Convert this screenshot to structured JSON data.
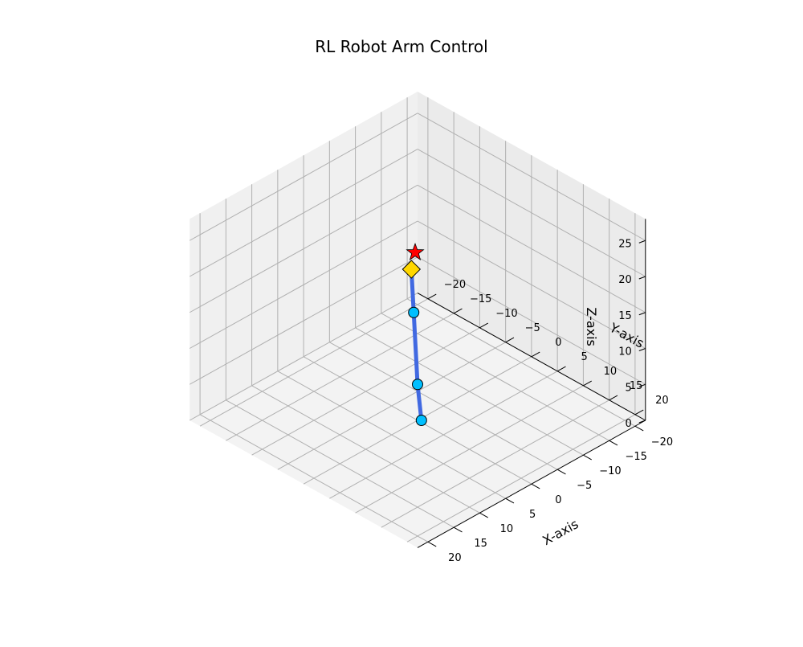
{
  "chart_data": {
    "type": "line3d",
    "title": "RL Robot Arm Control",
    "xlabel": "X-axis",
    "ylabel": "Y-axis",
    "zlabel": "Z-axis",
    "xlim": [
      -22,
      22
    ],
    "ylim": [
      -22,
      22
    ],
    "zlim": [
      0,
      28
    ],
    "xticks": [
      -20,
      -15,
      -10,
      -5,
      0,
      5,
      10,
      15,
      20
    ],
    "yticks": [
      -20,
      -15,
      -10,
      -5,
      0,
      5,
      10,
      15,
      20
    ],
    "zticks": [
      0,
      5,
      10,
      15,
      20,
      25
    ],
    "xtick_labels": [
      "−20",
      "−15",
      "−10",
      "−5",
      "0",
      "5",
      "10",
      "15",
      "20"
    ],
    "ytick_labels": [
      "−20",
      "−15",
      "−10",
      "−5",
      "0",
      "5",
      "10",
      "15",
      "20"
    ],
    "ztick_labels": [
      "0",
      "5",
      "10",
      "15",
      "20",
      "25"
    ],
    "grid": true,
    "view": {
      "elev": 30,
      "azim": 45
    },
    "arm": {
      "color": "#4169e1",
      "joints": [
        {
          "x": 0,
          "y": 0,
          "z": 0
        },
        {
          "x": 0,
          "y": 0,
          "z": 5
        },
        {
          "x": 0,
          "y": 0,
          "z": 15
        }
      ],
      "joint_color": "#00bfff",
      "end_effector": {
        "x": 0,
        "y": 0,
        "z": 21,
        "marker": "diamond",
        "color": "#ffd700"
      }
    },
    "target": {
      "x": 0,
      "y": 0,
      "z": 23,
      "marker": "star",
      "color": "#ff0000"
    }
  }
}
